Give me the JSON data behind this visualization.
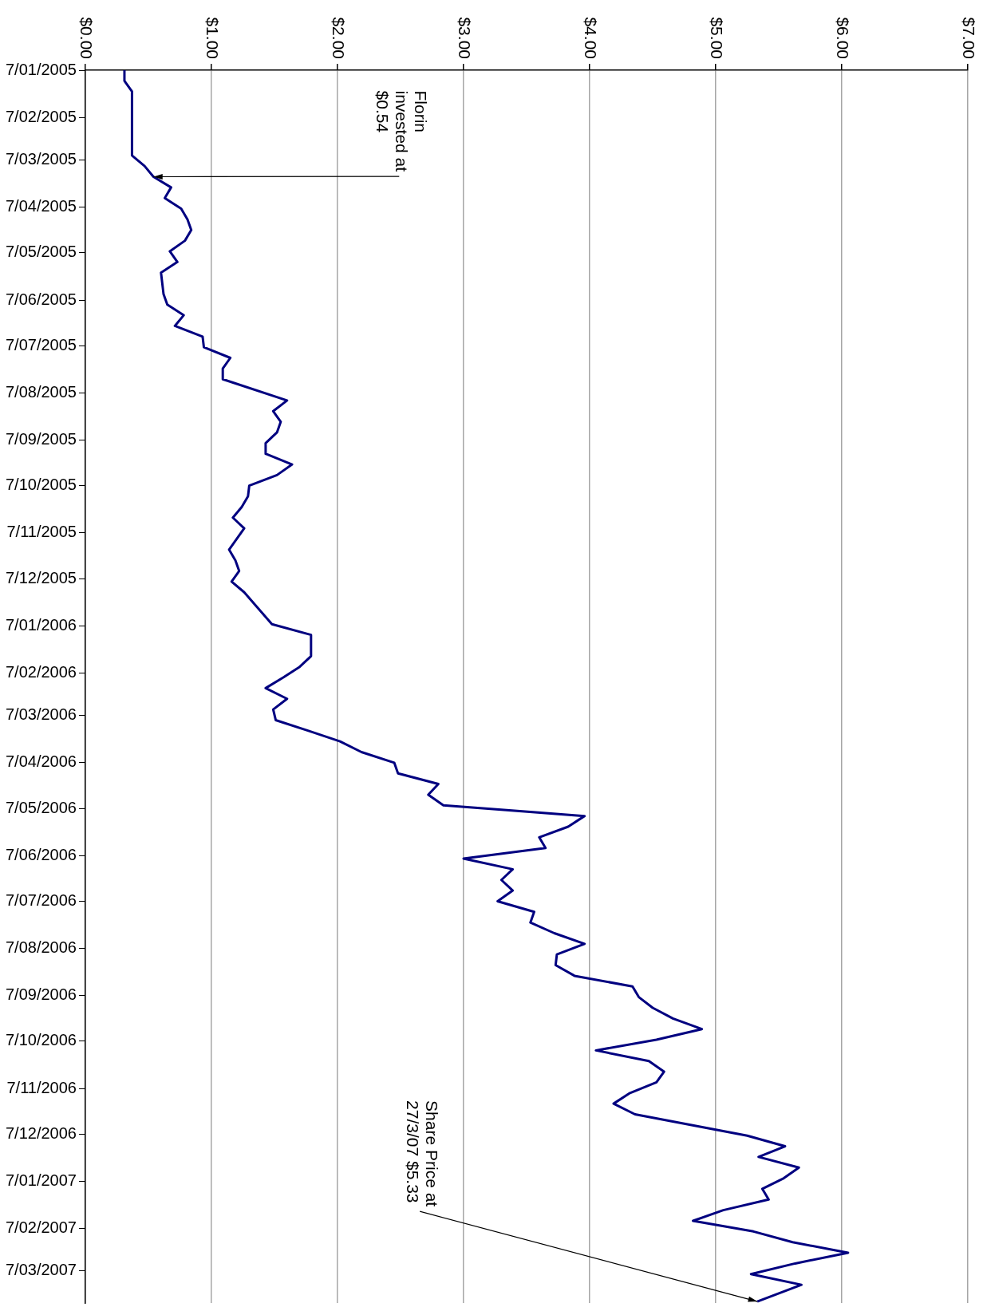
{
  "chart_data": {
    "type": "line",
    "orientation": "horizontal",
    "grid": "x",
    "legend": false,
    "marker": "none",
    "line_style": "solid",
    "x": [
      "2005-01-07",
      "2005-01-14",
      "2005-01-21",
      "2005-01-28",
      "2005-02-04",
      "2005-02-18",
      "2005-02-25",
      "2005-03-04",
      "2005-03-11",
      "2005-03-18",
      "2005-03-25",
      "2005-04-01",
      "2005-04-08",
      "2005-04-15",
      "2005-04-22",
      "2005-04-29",
      "2005-05-06",
      "2005-05-13",
      "2005-05-20",
      "2005-06-03",
      "2005-06-10",
      "2005-06-17",
      "2005-06-24",
      "2005-07-01",
      "2005-07-08",
      "2005-07-15",
      "2005-07-22",
      "2005-07-29",
      "2005-08-12",
      "2005-08-19",
      "2005-08-26",
      "2005-09-02",
      "2005-09-09",
      "2005-09-16",
      "2005-09-23",
      "2005-09-30",
      "2005-10-07",
      "2005-10-14",
      "2005-10-21",
      "2005-10-28",
      "2005-11-04",
      "2005-11-18",
      "2005-11-25",
      "2005-12-02",
      "2005-12-09",
      "2005-12-16",
      "2006-01-06",
      "2006-01-13",
      "2006-01-27",
      "2006-02-03",
      "2006-02-10",
      "2006-02-17",
      "2006-02-24",
      "2006-03-03",
      "2006-03-10",
      "2006-03-17",
      "2006-03-24",
      "2006-03-31",
      "2006-04-07",
      "2006-04-14",
      "2006-04-21",
      "2006-04-28",
      "2006-05-05",
      "2006-05-12",
      "2006-05-19",
      "2006-05-26",
      "2006-06-02",
      "2006-06-09",
      "2006-06-16",
      "2006-06-23",
      "2006-06-30",
      "2006-07-07",
      "2006-07-14",
      "2006-07-21",
      "2006-07-28",
      "2006-08-04",
      "2006-08-11",
      "2006-08-18",
      "2006-08-25",
      "2006-09-01",
      "2006-09-08",
      "2006-09-15",
      "2006-09-22",
      "2006-09-29",
      "2006-10-06",
      "2006-10-13",
      "2006-10-20",
      "2006-10-27",
      "2006-11-03",
      "2006-11-10",
      "2006-11-17",
      "2006-11-24",
      "2006-12-08",
      "2006-12-15",
      "2006-12-22",
      "2006-12-29",
      "2007-01-05",
      "2007-01-12",
      "2007-01-19",
      "2007-01-26",
      "2007-02-02",
      "2007-02-09",
      "2007-02-16",
      "2007-02-23",
      "2007-03-02",
      "2007-03-09",
      "2007-03-16",
      "2007-03-27"
    ],
    "series": [
      {
        "color": "#000080",
        "values": [
          0.31,
          0.31,
          0.37,
          0.37,
          0.37,
          0.37,
          0.37,
          0.37,
          0.47,
          0.54,
          0.68,
          0.63,
          0.76,
          0.81,
          0.84,
          0.79,
          0.67,
          0.73,
          0.6,
          0.62,
          0.65,
          0.78,
          0.71,
          0.93,
          0.94,
          1.15,
          1.09,
          1.09,
          1.6,
          1.49,
          1.55,
          1.52,
          1.43,
          1.43,
          1.64,
          1.52,
          1.3,
          1.29,
          1.24,
          1.17,
          1.26,
          1.14,
          1.19,
          1.22,
          1.16,
          1.26,
          1.48,
          1.79,
          1.79,
          1.7,
          1.57,
          1.43,
          1.6,
          1.49,
          1.51,
          1.77,
          2.02,
          2.19,
          2.45,
          2.48,
          2.8,
          2.72,
          2.84,
          3.96,
          3.83,
          3.6,
          3.65,
          3.0,
          3.39,
          3.3,
          3.39,
          3.27,
          3.56,
          3.53,
          3.72,
          3.96,
          3.74,
          3.73,
          3.88,
          4.34,
          4.39,
          4.5,
          4.66,
          4.89,
          4.53,
          4.05,
          4.47,
          4.59,
          4.53,
          4.32,
          4.19,
          4.36,
          5.25,
          5.55,
          5.34,
          5.66,
          5.54,
          5.37,
          5.42,
          5.06,
          4.82,
          5.3,
          5.61,
          6.05,
          5.63,
          5.28,
          5.68,
          5.33
        ]
      }
    ],
    "xlim": [
      0,
      7
    ],
    "xticks": [
      {
        "value": 0,
        "label": "$0.00"
      },
      {
        "value": 1,
        "label": "$1.00"
      },
      {
        "value": 2,
        "label": "$2.00"
      },
      {
        "value": 3,
        "label": "$3.00"
      },
      {
        "value": 4,
        "label": "$4.00"
      },
      {
        "value": 5,
        "label": "$5.00"
      },
      {
        "value": 6,
        "label": "$6.00"
      },
      {
        "value": 7,
        "label": "$7.00"
      }
    ],
    "ylim": [
      "2007-03-28",
      "2005-01-07"
    ],
    "yticks": [
      {
        "value": "2005-01-07",
        "label": "7/01/2005"
      },
      {
        "value": "2005-02-07",
        "label": "7/02/2005"
      },
      {
        "value": "2005-03-07",
        "label": "7/03/2005"
      },
      {
        "value": "2005-04-07",
        "label": "7/04/2005"
      },
      {
        "value": "2005-05-07",
        "label": "7/05/2005"
      },
      {
        "value": "2005-06-07",
        "label": "7/06/2005"
      },
      {
        "value": "2005-07-07",
        "label": "7/07/2005"
      },
      {
        "value": "2005-08-07",
        "label": "7/08/2005"
      },
      {
        "value": "2005-09-07",
        "label": "7/09/2005"
      },
      {
        "value": "2005-10-07",
        "label": "7/10/2005"
      },
      {
        "value": "2005-11-07",
        "label": "7/11/2005"
      },
      {
        "value": "2005-12-07",
        "label": "7/12/2005"
      },
      {
        "value": "2006-01-07",
        "label": "7/01/2006"
      },
      {
        "value": "2006-02-07",
        "label": "7/02/2006"
      },
      {
        "value": "2006-03-07",
        "label": "7/03/2006"
      },
      {
        "value": "2006-04-07",
        "label": "7/04/2006"
      },
      {
        "value": "2006-05-07",
        "label": "7/05/2006"
      },
      {
        "value": "2006-06-07",
        "label": "7/06/2006"
      },
      {
        "value": "2006-07-07",
        "label": "7/07/2006"
      },
      {
        "value": "2006-08-07",
        "label": "7/08/2006"
      },
      {
        "value": "2006-09-07",
        "label": "7/09/2006"
      },
      {
        "value": "2006-10-07",
        "label": "7/10/2006"
      },
      {
        "value": "2006-11-07",
        "label": "7/11/2006"
      },
      {
        "value": "2006-12-07",
        "label": "7/12/2006"
      },
      {
        "value": "2007-01-07",
        "label": "7/01/2007"
      },
      {
        "value": "2007-02-07",
        "label": "7/02/2007"
      },
      {
        "value": "2007-03-07",
        "label": "7/03/2007"
      }
    ],
    "annotations": [
      {
        "text": "Florin\ninvested at\n$0.54",
        "x": 0.54,
        "y": "2005-03-18"
      },
      {
        "text": "Share Price at\n27/3/07 $5.33",
        "x": 5.33,
        "y": "2007-03-27"
      }
    ]
  }
}
